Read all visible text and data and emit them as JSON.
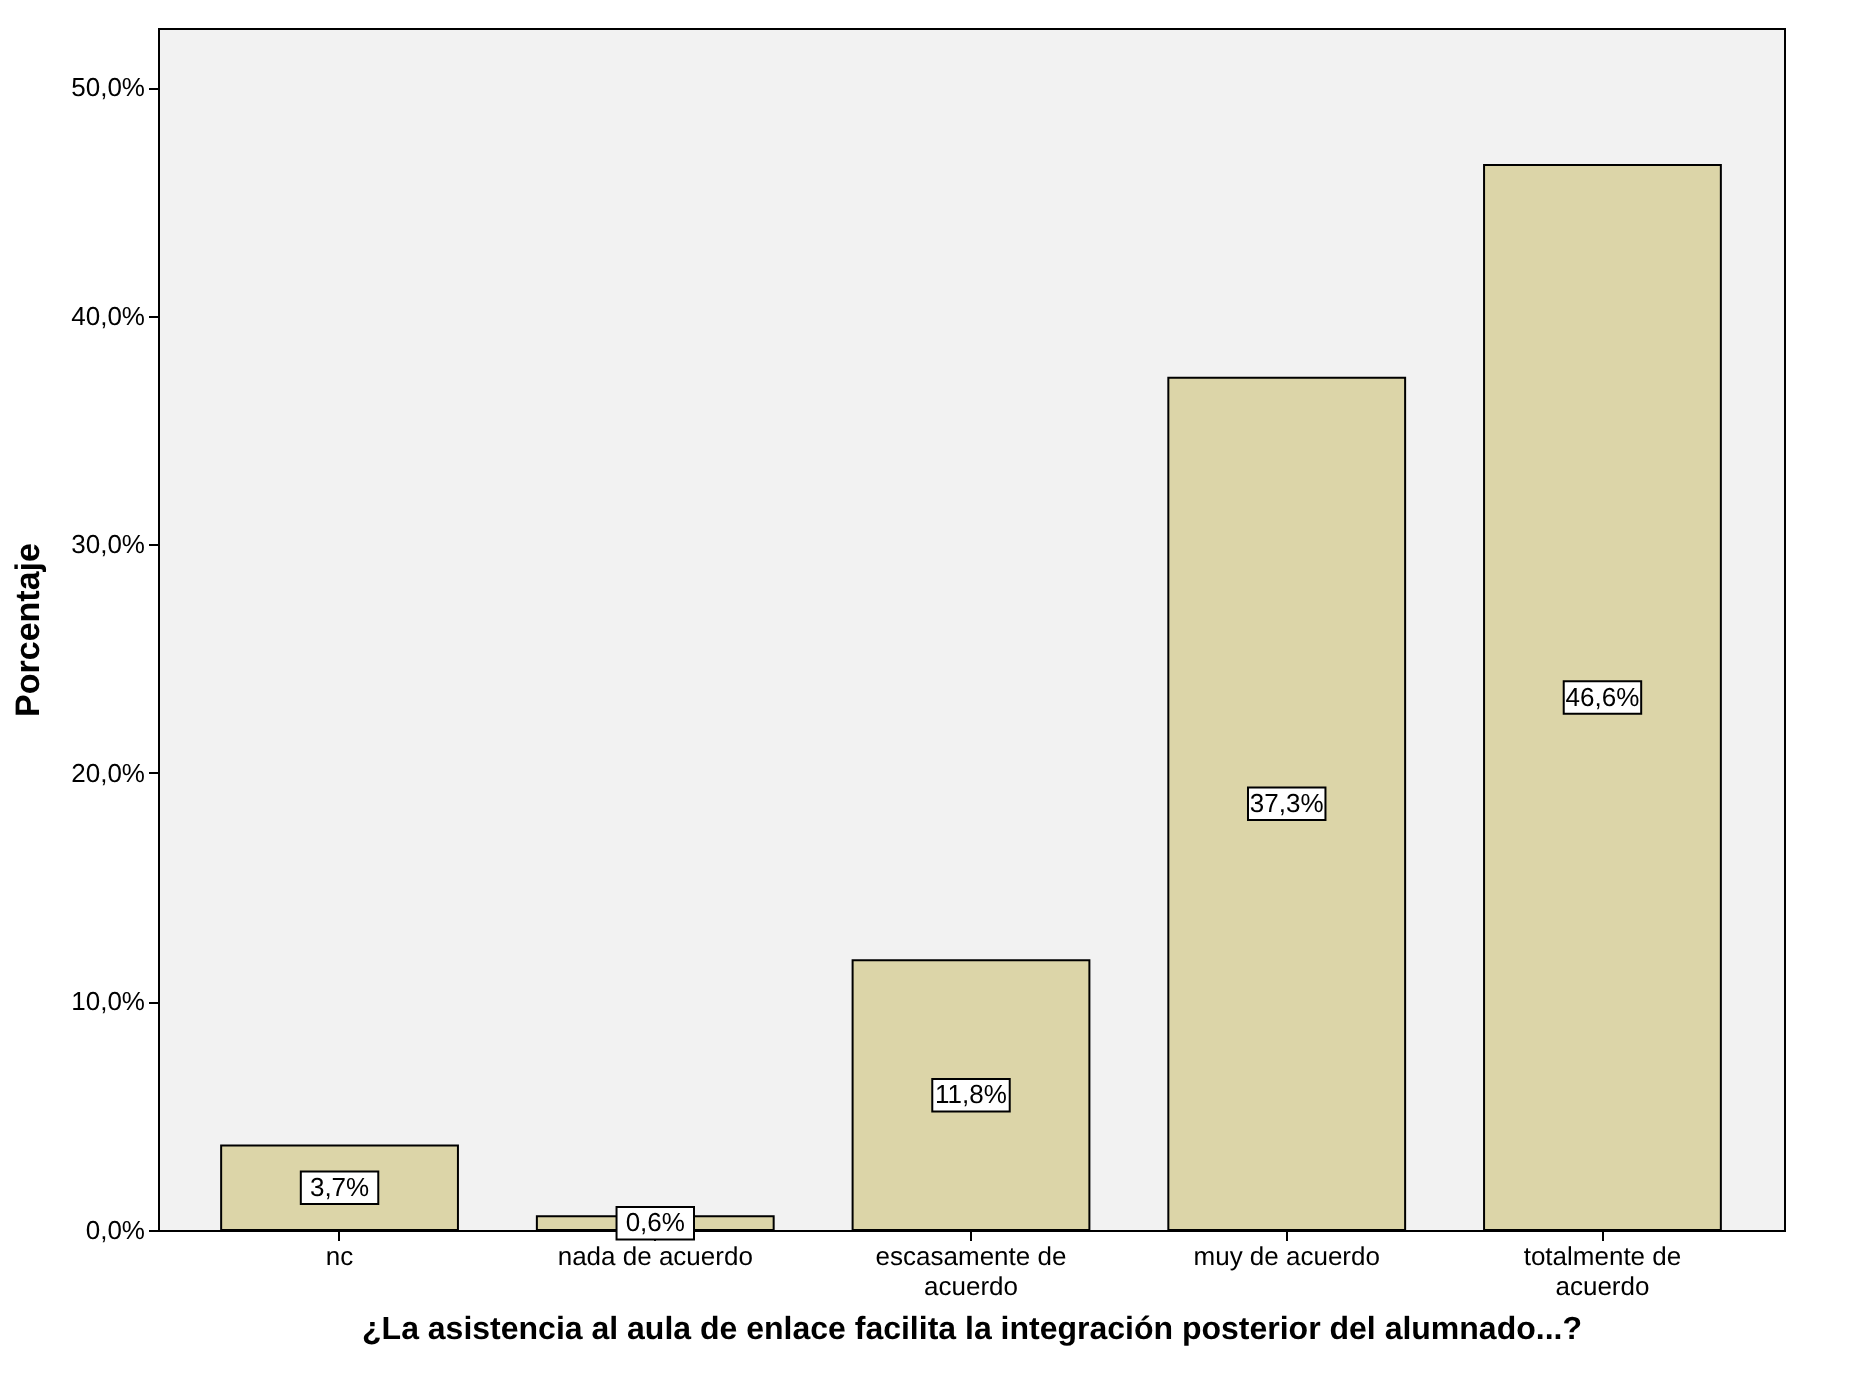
{
  "chart_data": {
    "type": "bar",
    "categories": [
      "nc",
      "nada de acuerdo",
      "escasamente de acuerdo",
      "muy de acuerdo",
      "totalmente de acuerdo"
    ],
    "values": [
      3.7,
      0.6,
      11.8,
      37.3,
      46.6
    ],
    "color": "#dcd5a8",
    "xlabel": "¿La asistencia al aula de enlace facilita la integración posterior del alumnado...?",
    "ylabel": "Porcentaje",
    "ylim": [
      0,
      52.6
    ],
    "yticks": [
      {
        "value": 0,
        "label": "0,0%"
      },
      {
        "value": 10,
        "label": "10,0%"
      },
      {
        "value": 20,
        "label": "20,0%"
      },
      {
        "value": 30,
        "label": "30,0%"
      },
      {
        "value": 40,
        "label": "40,0%"
      },
      {
        "value": 50,
        "label": "50,0%"
      }
    ],
    "value_labels": [
      "3,7%",
      "0,6%",
      "11,8%",
      "37,3%",
      "46,6%"
    ],
    "grid": false
  }
}
